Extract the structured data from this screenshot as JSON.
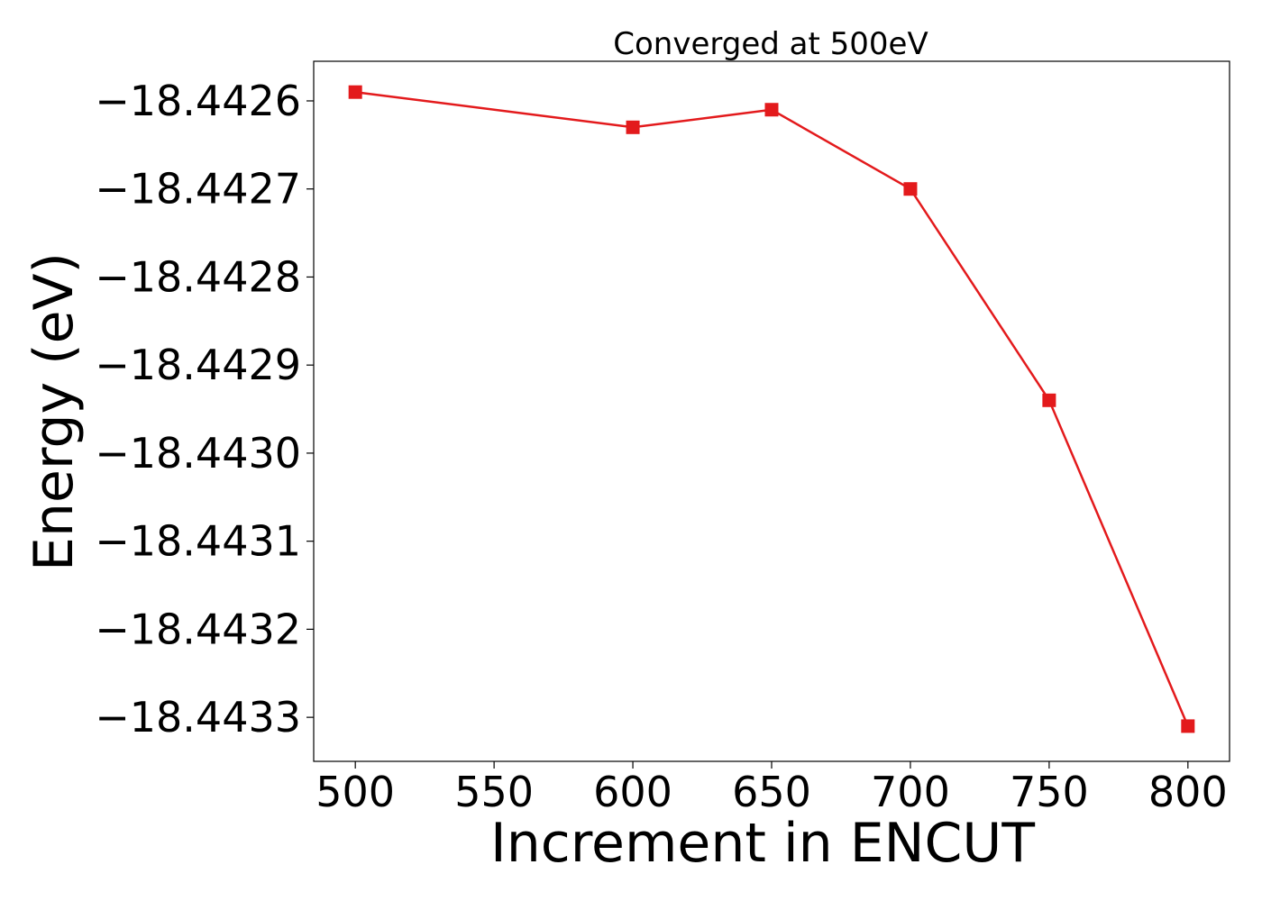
{
  "chart_data": {
    "type": "line",
    "title": "Converged at 500eV",
    "xlabel": "Increment in ENCUT",
    "ylabel": "Energy (eV)",
    "x": [
      500,
      600,
      650,
      700,
      750,
      800
    ],
    "series": [
      {
        "values": [
          -18.44259,
          -18.44263,
          -18.44261,
          -18.4427,
          -18.44294,
          -18.44331
        ],
        "color": "#e31a1c",
        "marker": "square"
      }
    ],
    "xlim": [
      485,
      815
    ],
    "ylim": [
      -18.44335,
      -18.442555
    ],
    "xticks": [
      500,
      550,
      600,
      650,
      700,
      750,
      800
    ],
    "xtick_labels": [
      "500",
      "550",
      "600",
      "650",
      "700",
      "750",
      "800"
    ],
    "yticks": [
      -18.4426,
      -18.4427,
      -18.4428,
      -18.4429,
      -18.443,
      -18.4431,
      -18.4432,
      -18.4433
    ],
    "ytick_labels": [
      "−18.4426",
      "−18.4427",
      "−18.4428",
      "−18.4429",
      "−18.4430",
      "−18.4431",
      "−18.4432",
      "−18.4433"
    ],
    "grid": false,
    "legend": "none"
  }
}
